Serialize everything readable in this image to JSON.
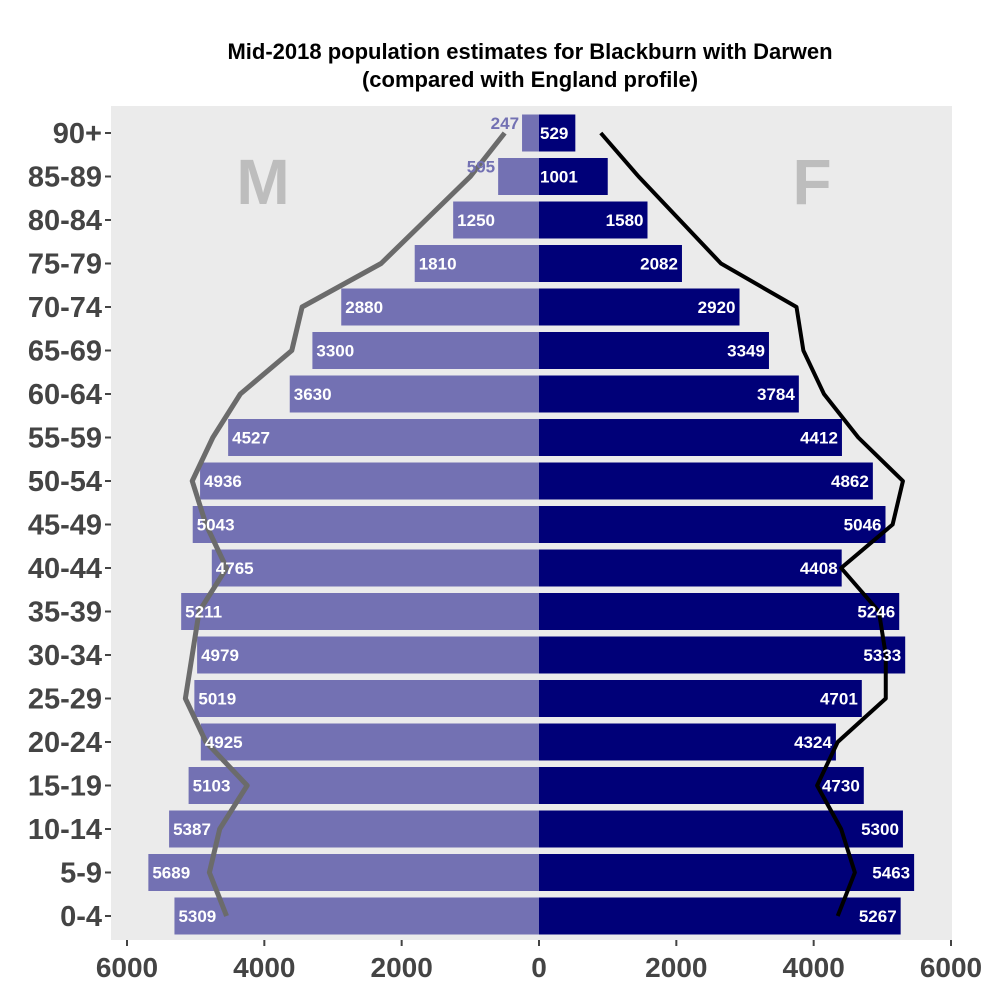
{
  "chart_data": {
    "type": "bar",
    "orientation": "horizontal-pyramid",
    "title": "Mid-2018 population estimates for Blackburn with Darwen",
    "subtitle": "(compared with England profile)",
    "categories": [
      "0-4",
      "5-9",
      "10-14",
      "15-19",
      "20-24",
      "25-29",
      "30-34",
      "35-39",
      "40-44",
      "45-49",
      "50-54",
      "55-59",
      "60-64",
      "65-69",
      "70-74",
      "75-79",
      "80-84",
      "85-89",
      "90+"
    ],
    "series": [
      {
        "name": "M",
        "values": [
          5309,
          5689,
          5387,
          5103,
          4925,
          5019,
          4979,
          5211,
          4765,
          5043,
          4936,
          4527,
          3630,
          3300,
          2880,
          1810,
          1250,
          595,
          247
        ],
        "color": "#7371b3"
      },
      {
        "name": "F",
        "values": [
          5267,
          5463,
          5300,
          4730,
          4324,
          4701,
          5333,
          5246,
          4408,
          5046,
          4862,
          4412,
          3784,
          3349,
          2920,
          2082,
          1580,
          1001,
          529
        ],
        "color": "#000078"
      }
    ],
    "england_profile": {
      "male": [
        4550,
        4800,
        4650,
        4250,
        4850,
        5150,
        5050,
        4950,
        4550,
        4850,
        5050,
        4750,
        4350,
        3600,
        3450,
        2300,
        1650,
        1000,
        500
      ],
      "female": [
        4350,
        4600,
        4400,
        4050,
        4350,
        5050,
        5050,
        4950,
        4400,
        5150,
        5300,
        4650,
        4150,
        3850,
        3750,
        2650,
        2050,
        1450,
        900
      ],
      "male_color": "#6b6b6b",
      "female_color": "#000000"
    },
    "xticks": [
      "6000",
      "4000",
      "2000",
      "0",
      "2000",
      "4000",
      "6000"
    ],
    "xlim": [
      -6000,
      6000
    ],
    "xlabel": "",
    "ylabel": "",
    "grid": false,
    "panel_color": "#ebebeb",
    "sex_labels": {
      "male": "M",
      "female": "F"
    }
  }
}
